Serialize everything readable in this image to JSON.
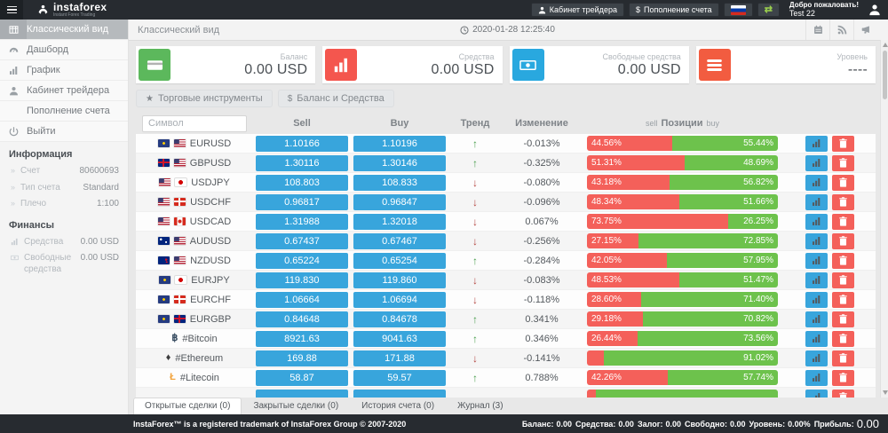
{
  "topbar": {
    "brand": "instaforex",
    "brand_subtitle": "Instant Forex Trading",
    "trader_cabinet": "Кабинет трейдера",
    "deposit": "Пополнение счета",
    "welcome": "Добро пожаловать!",
    "username": "Test 22",
    "icons": [
      "menu-icon",
      "user-icon",
      "dollar-icon",
      "flag-russia-icon",
      "exchange-icon",
      "avatar-icon"
    ]
  },
  "sidebar": {
    "menu": [
      {
        "label": "Классический вид",
        "icon": "table-icon",
        "active": true
      },
      {
        "label": "Дашборд",
        "icon": "dashboard-icon",
        "active": false
      },
      {
        "label": "График",
        "icon": "bar-chart-icon",
        "active": false
      },
      {
        "label": "Кабинет трейдера",
        "icon": "user-icon",
        "active": false
      },
      {
        "label": "Пополнение счета",
        "icon": "dollar-icon",
        "active": false
      },
      {
        "label": "Выйти",
        "icon": "power-icon",
        "active": false
      }
    ],
    "info_title": "Информация",
    "info": [
      {
        "label": "Счет",
        "value": "80600693"
      },
      {
        "label": "Тип счета",
        "value": "Standard"
      },
      {
        "label": "Плечо",
        "value": "1:100"
      }
    ],
    "finance_title": "Финансы",
    "finance": [
      {
        "label": "Средства",
        "value": "0.00 USD",
        "icon": "bar-chart-icon"
      },
      {
        "label": "Свободные средства",
        "value": "0.00 USD",
        "icon": "banknote-icon"
      }
    ]
  },
  "header": {
    "title": "Классический вид",
    "timestamp": "2020-01-28 12:25:40",
    "icons": [
      "clock-icon",
      "calendar-icon",
      "rss-icon",
      "megaphone-icon"
    ]
  },
  "cards": [
    {
      "label": "Баланс",
      "value": "0.00 USD",
      "icon": "credit-card-icon",
      "color": "#5cb85c"
    },
    {
      "label": "Средства",
      "value": "0.00 USD",
      "icon": "bar-chart-icon",
      "color": "#f4564e"
    },
    {
      "label": "Свободные средства",
      "value": "0.00 USD",
      "icon": "banknote-icon",
      "color": "#29a8df"
    },
    {
      "label": "Уровень",
      "value": "----",
      "icon": "list-icon",
      "color": "#f25c40"
    }
  ],
  "toolbar": {
    "instruments": "Торговые инструменты",
    "balance_funds": "Баланс и Средства"
  },
  "table": {
    "symbol_placeholder": "Символ",
    "headers": {
      "sell": "Sell",
      "buy": "Buy",
      "trend": "Тренд",
      "change": "Изменение",
      "positions": "Позиции",
      "positions_sell": "sell",
      "positions_buy": "buy"
    },
    "rows": [
      {
        "symbol": "EURUSD",
        "flags": [
          "eu",
          "us"
        ],
        "sell": "1.10166",
        "buy": "1.10196",
        "trend": "up",
        "change": "-0.013%",
        "sell_pct": 44.56,
        "buy_pct": 55.44,
        "sell_text": "44.56%",
        "buy_text": "55.44%"
      },
      {
        "symbol": "GBPUSD",
        "flags": [
          "gb",
          "us"
        ],
        "sell": "1.30116",
        "buy": "1.30146",
        "trend": "up",
        "change": "-0.325%",
        "sell_pct": 51.31,
        "buy_pct": 48.69,
        "sell_text": "51.31%",
        "buy_text": "48.69%"
      },
      {
        "symbol": "USDJPY",
        "flags": [
          "us",
          "jp"
        ],
        "sell": "108.803",
        "buy": "108.833",
        "trend": "down",
        "change": "-0.080%",
        "sell_pct": 43.18,
        "buy_pct": 56.82,
        "sell_text": "43.18%",
        "buy_text": "56.82%"
      },
      {
        "symbol": "USDCHF",
        "flags": [
          "us",
          "ch"
        ],
        "sell": "0.96817",
        "buy": "0.96847",
        "trend": "down",
        "change": "-0.096%",
        "sell_pct": 48.34,
        "buy_pct": 51.66,
        "sell_text": "48.34%",
        "buy_text": "51.66%"
      },
      {
        "symbol": "USDCAD",
        "flags": [
          "us",
          "ca"
        ],
        "sell": "1.31988",
        "buy": "1.32018",
        "trend": "down",
        "change": "0.067%",
        "sell_pct": 73.75,
        "buy_pct": 26.25,
        "sell_text": "73.75%",
        "buy_text": "26.25%"
      },
      {
        "symbol": "AUDUSD",
        "flags": [
          "au",
          "us"
        ],
        "sell": "0.67437",
        "buy": "0.67467",
        "trend": "down",
        "change": "-0.256%",
        "sell_pct": 27.15,
        "buy_pct": 72.85,
        "sell_text": "27.15%",
        "buy_text": "72.85%"
      },
      {
        "symbol": "NZDUSD",
        "flags": [
          "nz",
          "us"
        ],
        "sell": "0.65224",
        "buy": "0.65254",
        "trend": "up",
        "change": "-0.284%",
        "sell_pct": 42.05,
        "buy_pct": 57.95,
        "sell_text": "42.05%",
        "buy_text": "57.95%"
      },
      {
        "symbol": "EURJPY",
        "flags": [
          "eu",
          "jp"
        ],
        "sell": "119.830",
        "buy": "119.860",
        "trend": "down",
        "change": "-0.083%",
        "sell_pct": 48.53,
        "buy_pct": 51.47,
        "sell_text": "48.53%",
        "buy_text": "51.47%"
      },
      {
        "symbol": "EURCHF",
        "flags": [
          "eu",
          "ch"
        ],
        "sell": "1.06664",
        "buy": "1.06694",
        "trend": "down",
        "change": "-0.118%",
        "sell_pct": 28.6,
        "buy_pct": 71.4,
        "sell_text": "28.60%",
        "buy_text": "71.40%"
      },
      {
        "symbol": "EURGBP",
        "flags": [
          "eu",
          "gb"
        ],
        "sell": "0.84648",
        "buy": "0.84678",
        "trend": "up",
        "change": "0.341%",
        "sell_pct": 29.18,
        "buy_pct": 70.82,
        "sell_text": "29.18%",
        "buy_text": "70.82%"
      },
      {
        "symbol": "#Bitcoin",
        "crypto": "bitcoin",
        "sell": "8921.63",
        "buy": "9041.63",
        "trend": "up",
        "change": "0.346%",
        "sell_pct": 26.44,
        "buy_pct": 73.56,
        "sell_text": "26.44%",
        "buy_text": "73.56%"
      },
      {
        "symbol": "#Ethereum",
        "crypto": "ethereum",
        "sell": "169.88",
        "buy": "171.88",
        "trend": "down",
        "change": "-0.141%",
        "sell_pct": 8.98,
        "buy_pct": 91.02,
        "sell_text": "",
        "buy_text": "91.02%"
      },
      {
        "symbol": "#Litecoin",
        "crypto": "litecoin",
        "sell": "58.87",
        "buy": "59.57",
        "trend": "up",
        "change": "0.788%",
        "sell_pct": 42.26,
        "buy_pct": 57.74,
        "sell_text": "42.26%",
        "buy_text": "57.74%"
      },
      {
        "symbol": "",
        "sell": "",
        "buy": "",
        "trend": "",
        "change": "",
        "sell_pct": 4.5,
        "buy_pct": 95.5,
        "sell_text": "",
        "buy_text": "",
        "partial": true
      }
    ]
  },
  "tabs": [
    {
      "label": "Открытые сделки (0)",
      "active": true
    },
    {
      "label": "Закрытые сделки (0)",
      "active": false
    },
    {
      "label": "История счета (0)",
      "active": false
    },
    {
      "label": "Журнал (3)",
      "active": false
    }
  ],
  "footer": {
    "copyright": "InstaForex™ is a registered trademark of InstaForex Group © 2007-2020",
    "stats": [
      {
        "label": "Баланс:",
        "value": "0.00",
        "big": false
      },
      {
        "label": "Средства:",
        "value": "0.00",
        "big": false
      },
      {
        "label": "Залог:",
        "value": "0.00",
        "big": false
      },
      {
        "label": "Свободно:",
        "value": "0.00",
        "big": false
      },
      {
        "label": "Уровень:",
        "value": "0.00%",
        "big": false
      },
      {
        "label": "Прибыль:",
        "value": "0.00",
        "big": true
      }
    ]
  }
}
